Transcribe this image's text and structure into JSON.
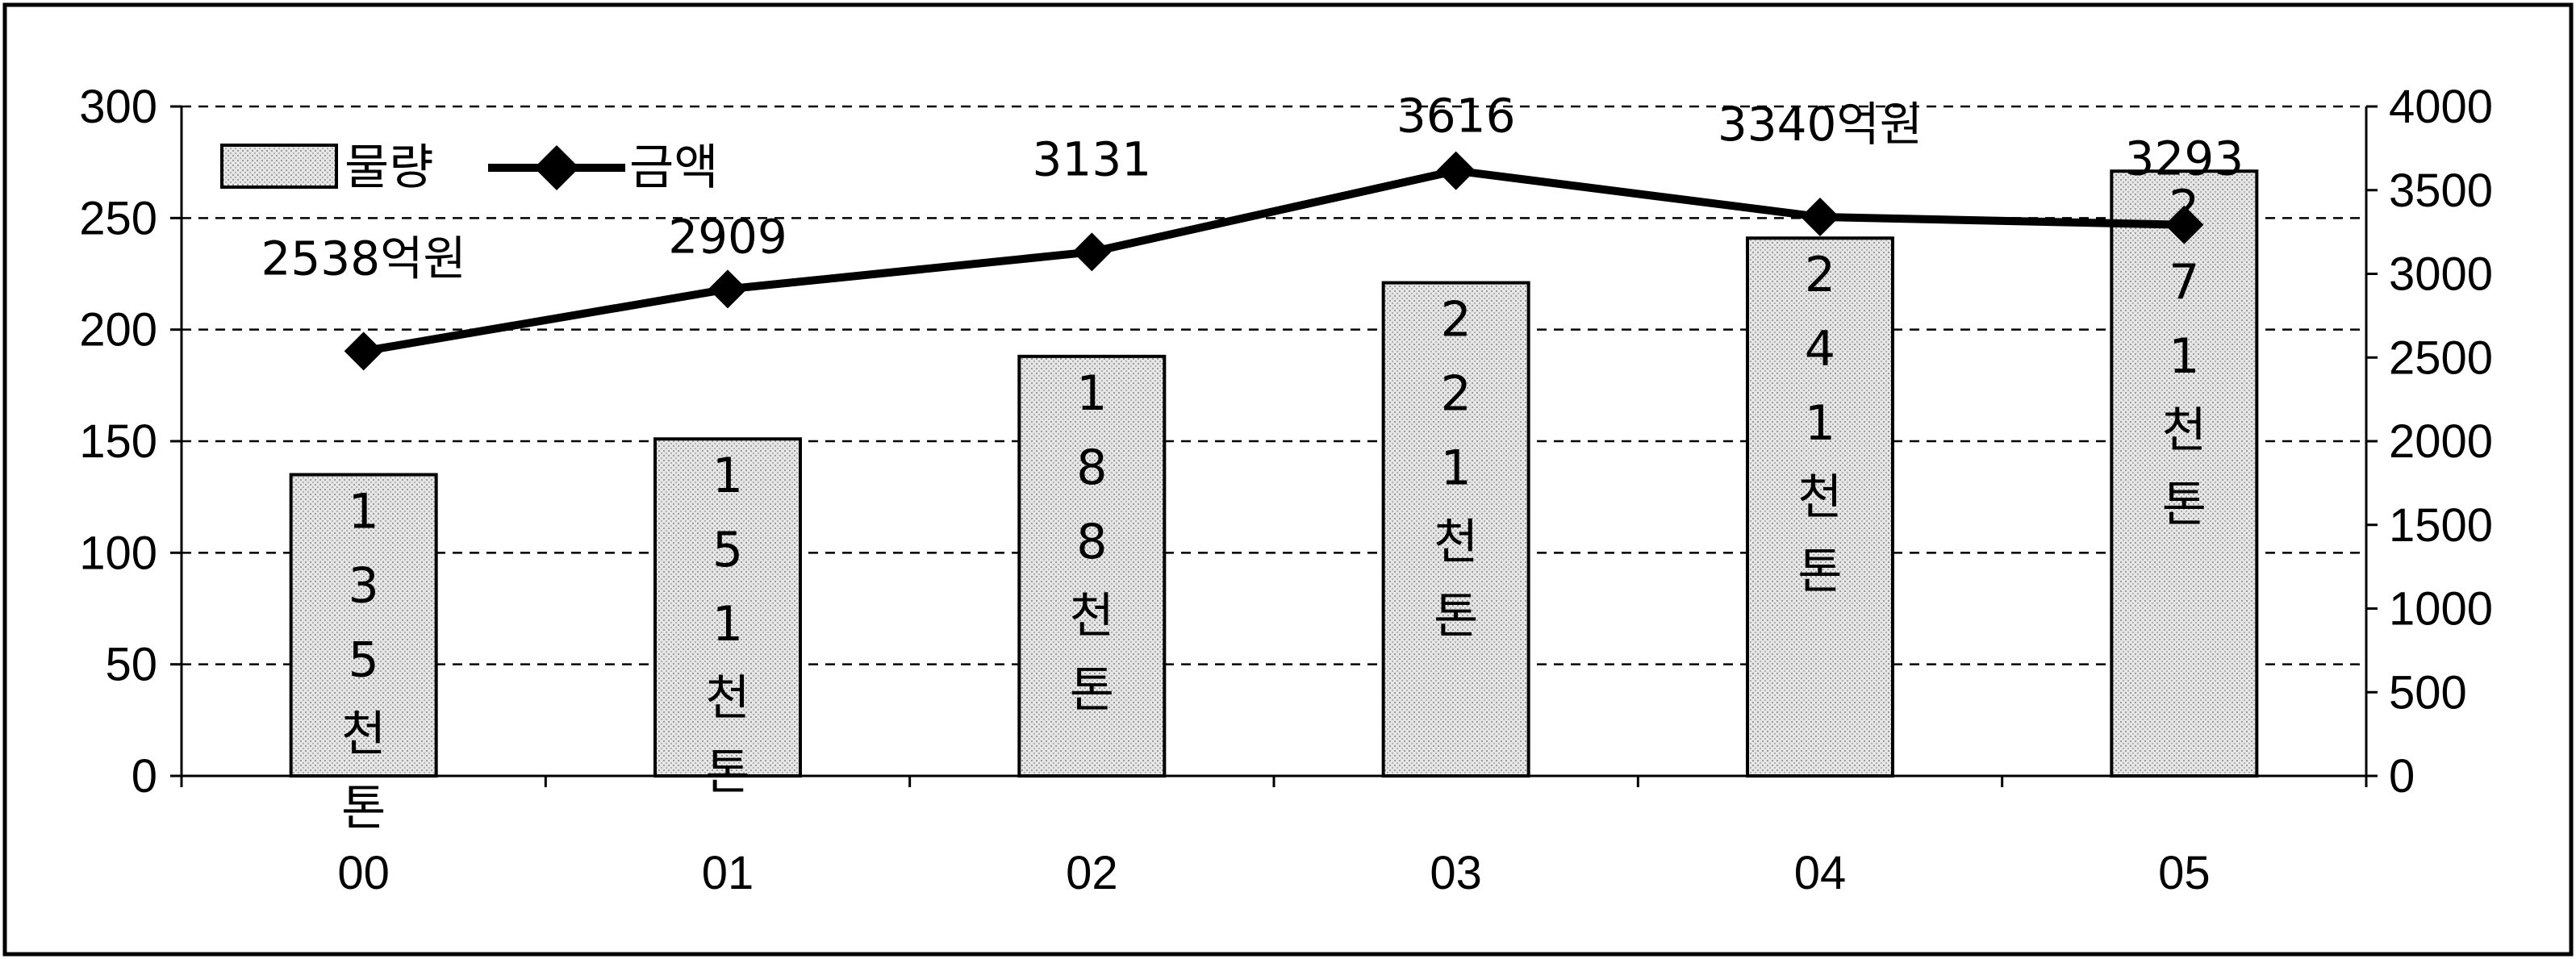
{
  "chart_data": {
    "type": "bar",
    "categories": [
      "00",
      "01",
      "02",
      "03",
      "04",
      "05"
    ],
    "series": [
      {
        "name": "물량",
        "type": "bar",
        "axis": "left",
        "values": [
          135,
          151,
          188,
          221,
          241,
          271
        ],
        "bar_labels": [
          "1\n3\n5\n천\n톤",
          "1\n5\n1\n천\n톤",
          "1\n8\n8\n천\n톤",
          "2\n2\n1\n천\n톤",
          "2\n4\n1\n천\n톤",
          "2\n7\n1\n천\n톤"
        ]
      },
      {
        "name": "금액",
        "type": "line",
        "axis": "right",
        "values": [
          2538,
          2909,
          3131,
          3616,
          3340,
          3293
        ],
        "data_labels": [
          "2538억원",
          "2909",
          "3131",
          "3616",
          "3340억원",
          "3293"
        ]
      }
    ],
    "y_left": {
      "ylim": [
        0,
        300
      ],
      "ticks": [
        "0",
        "50",
        "100",
        "150",
        "200",
        "250",
        "300"
      ]
    },
    "y_right": {
      "ylim": [
        0,
        4000
      ],
      "ticks": [
        "0",
        "500",
        "1000",
        "1500",
        "2000",
        "2500",
        "3000",
        "3500",
        "4000"
      ]
    },
    "grid": "dashed-horizontal",
    "legend": {
      "placement": "top-left",
      "entries": [
        "물량",
        "금액"
      ]
    },
    "colors": {
      "bar_fill": "#d8d8d8",
      "line": "#000000",
      "frame": "#000000"
    }
  }
}
